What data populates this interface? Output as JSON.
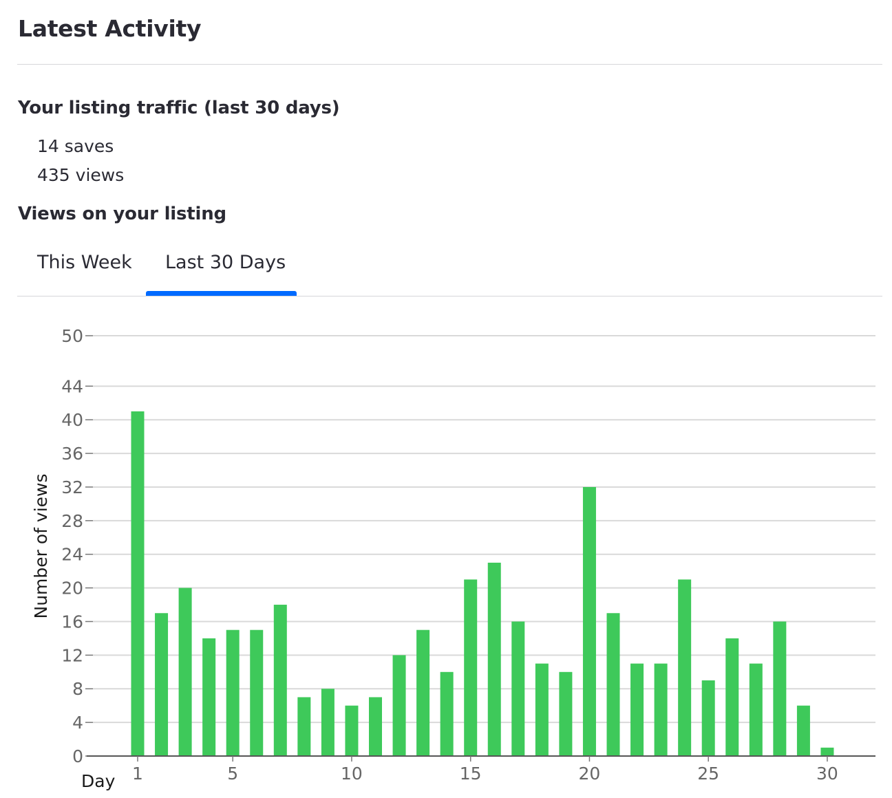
{
  "header": {
    "title": "Latest Activity"
  },
  "traffic": {
    "heading": "Your listing traffic (last 30 days)",
    "saves": "14 saves",
    "views": "435 views"
  },
  "views_section": {
    "heading": "Views on your listing"
  },
  "tabs": [
    {
      "label": "This Week",
      "active": false
    },
    {
      "label": "Last 30 Days",
      "active": true
    }
  ],
  "colors": {
    "bar": "#3ec95a",
    "tab_active": "#006aff",
    "grid": "#d9d9d9"
  },
  "chart_data": {
    "type": "bar",
    "xlabel": "Day",
    "ylabel": "Number of views",
    "x": [
      1,
      2,
      3,
      4,
      5,
      6,
      7,
      8,
      9,
      10,
      11,
      12,
      13,
      14,
      15,
      16,
      17,
      18,
      19,
      20,
      21,
      22,
      23,
      24,
      25,
      26,
      27,
      28,
      29,
      30
    ],
    "values": [
      41,
      17,
      20,
      14,
      15,
      15,
      18,
      7,
      8,
      6,
      7,
      12,
      15,
      10,
      21,
      23,
      16,
      11,
      10,
      32,
      17,
      11,
      11,
      21,
      9,
      14,
      11,
      16,
      6,
      1
    ],
    "x_ticks": [
      1,
      5,
      10,
      15,
      20,
      25,
      30
    ],
    "y_ticks": [
      0,
      4,
      8,
      12,
      16,
      20,
      24,
      28,
      32,
      36,
      40,
      44,
      50
    ],
    "ylim": [
      0,
      50
    ],
    "grid": true
  }
}
